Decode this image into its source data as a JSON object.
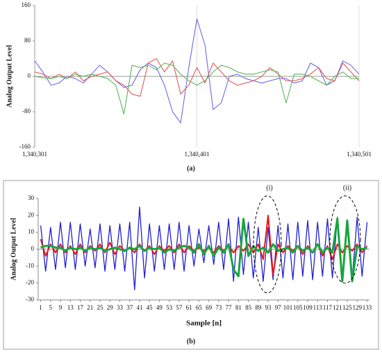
{
  "chart_data": [
    {
      "type": "line",
      "y_label": "Analog Output Level",
      "caption": "(a)",
      "x": [
        1340301,
        1340306,
        1340311,
        1340316,
        1340321,
        1340326,
        1340331,
        1340336,
        1340341,
        1340346,
        1340351,
        1340356,
        1340361,
        1340366,
        1340371,
        1340376,
        1340381,
        1340386,
        1340391,
        1340396,
        1340401,
        1340406,
        1340411,
        1340416,
        1340421,
        1340426,
        1340431,
        1340436,
        1340441,
        1340446,
        1340451,
        1340456,
        1340461,
        1340466,
        1340471,
        1340476,
        1340481,
        1340486,
        1340491,
        1340496,
        1340501
      ],
      "xlim": [
        1340301,
        1340501
      ],
      "xticks": [
        {
          "value": 1340301,
          "label": "1,340,301"
        },
        {
          "value": 1340401,
          "label": "1,340,401"
        },
        {
          "value": 1340501,
          "label": "1,340,501"
        }
      ],
      "ylim": [
        -160,
        160
      ],
      "yticks": [
        -160,
        -80,
        0,
        80,
        160
      ],
      "grid": true,
      "series": [
        {
          "color": "#6a6ae6",
          "values": [
            35,
            10,
            -20,
            -15,
            0,
            -5,
            -15,
            5,
            25,
            10,
            -10,
            -25,
            -20,
            15,
            30,
            20,
            -20,
            -80,
            -105,
            20,
            130,
            70,
            -75,
            -60,
            0,
            5,
            -5,
            -10,
            -15,
            -10,
            -5,
            -5,
            -15,
            -10,
            30,
            20,
            -20,
            -10,
            35,
            25,
            5
          ]
        },
        {
          "color": "#e25858",
          "values": [
            10,
            5,
            -5,
            5,
            -5,
            10,
            -10,
            0,
            5,
            10,
            -10,
            -20,
            -40,
            -45,
            30,
            40,
            10,
            35,
            -40,
            -20,
            20,
            -15,
            30,
            10,
            -10,
            -20,
            -15,
            -10,
            0,
            20,
            5,
            -10,
            -10,
            -5,
            5,
            20,
            -5,
            -10,
            30,
            10,
            -10
          ]
        },
        {
          "color": "#5ab45a",
          "values": [
            0,
            -3,
            -5,
            0,
            -5,
            5,
            0,
            5,
            0,
            -5,
            -20,
            -85,
            25,
            20,
            25,
            15,
            30,
            25,
            5,
            -10,
            -20,
            -10,
            10,
            25,
            20,
            10,
            5,
            5,
            10,
            15,
            10,
            -60,
            5,
            5,
            0,
            -10,
            -20,
            0,
            10,
            -5,
            -5
          ]
        }
      ]
    },
    {
      "type": "line",
      "y_label": "Analog Output Level",
      "x_label": "Sample [n]",
      "caption": "(b)",
      "annotations": [
        "(i)",
        "(ii)"
      ],
      "x": [
        1,
        3,
        5,
        7,
        9,
        11,
        13,
        15,
        17,
        19,
        21,
        23,
        25,
        27,
        29,
        31,
        33,
        35,
        37,
        39,
        41,
        43,
        45,
        47,
        49,
        51,
        53,
        55,
        57,
        59,
        61,
        63,
        65,
        67,
        69,
        71,
        73,
        75,
        77,
        79,
        81,
        83,
        85,
        87,
        89,
        91,
        93,
        95,
        97,
        99,
        101,
        103,
        105,
        107,
        109,
        111,
        113,
        115,
        117,
        119,
        121,
        123,
        125,
        127,
        129,
        131,
        133
      ],
      "xlim": [
        0,
        134
      ],
      "xticks": [
        1,
        5,
        9,
        13,
        17,
        21,
        25,
        29,
        33,
        37,
        41,
        45,
        49,
        53,
        57,
        61,
        65,
        69,
        73,
        77,
        81,
        85,
        89,
        93,
        97,
        101,
        105,
        109,
        113,
        117,
        121,
        125,
        129,
        133
      ],
      "ylim": [
        -30,
        30
      ],
      "yticks": [
        -30,
        -20,
        -10,
        0,
        10,
        20,
        30
      ],
      "grid": false,
      "series": [
        {
          "color": "#1f1fd2",
          "width": 1.3,
          "values": [
            14,
            -13,
            13,
            -12,
            16,
            -11,
            16,
            -12,
            15,
            -10,
            12,
            -11,
            15,
            -13,
            14,
            -12,
            15,
            -13,
            16,
            -24,
            25,
            -17,
            15,
            -13,
            14,
            -12,
            15,
            -12,
            16,
            -13,
            14,
            -10,
            12,
            -8,
            14,
            -9,
            16,
            -12,
            18,
            -19,
            19,
            -15,
            16,
            -17,
            13,
            -19,
            13,
            -18,
            14,
            -17,
            15,
            -18,
            16,
            -16,
            17,
            -18,
            16,
            -16,
            18,
            -17,
            19,
            -18,
            17,
            -18,
            19,
            -16,
            16
          ]
        },
        {
          "color": "#e8141a",
          "width": 2,
          "values": [
            6,
            -4,
            3,
            -2,
            3,
            -2,
            2,
            -3,
            3,
            -2,
            2,
            -1,
            3,
            -2,
            4,
            -3,
            2,
            -1,
            1,
            -2,
            3,
            -1,
            2,
            -3,
            2,
            -1,
            2,
            -2,
            3,
            -2,
            2,
            -1,
            1,
            -1,
            1,
            -2,
            2,
            -1,
            2,
            -2,
            2,
            -1,
            3,
            -2,
            3,
            -6,
            20,
            -15,
            3,
            -2,
            2,
            -1,
            2,
            -3,
            2,
            -2,
            3,
            -4,
            2,
            -6,
            3,
            -2,
            2,
            -1,
            3,
            -2,
            2
          ]
        },
        {
          "color": "#16a63c",
          "width": 3,
          "values": [
            1,
            2,
            2,
            1,
            1,
            -1,
            1,
            0,
            1,
            -1,
            1,
            0,
            1,
            -1,
            0,
            1,
            0,
            -1,
            1,
            0,
            2,
            -1,
            1,
            0,
            1,
            -2,
            0,
            -1,
            1,
            2,
            1,
            -2,
            3,
            -3,
            2,
            -4,
            1,
            -2,
            3,
            -12,
            -16,
            18,
            -4,
            2,
            -1,
            1,
            -2,
            3,
            -1,
            0,
            1,
            -2,
            2,
            -1,
            1,
            -2,
            3,
            -2,
            1,
            -2,
            18,
            -19,
            17,
            -19,
            2,
            0,
            1
          ]
        }
      ]
    }
  ]
}
